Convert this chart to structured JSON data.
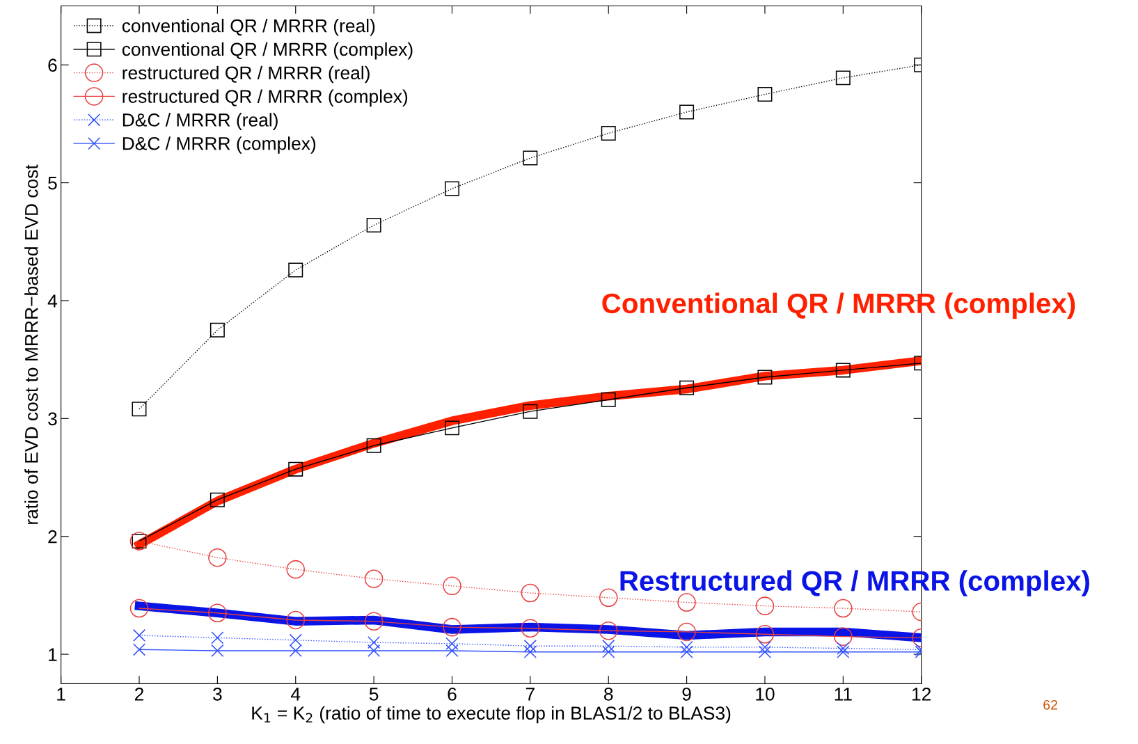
{
  "chart_data": {
    "type": "line",
    "xlabel": "K$_{1}$ = K$_{2}$ (ratio of time to execute flop in BLAS1/2 to BLAS3)",
    "ylabel": "ratio of EVD cost to MRRR−based EVD cost",
    "x": [
      2,
      3,
      4,
      5,
      6,
      7,
      8,
      9,
      10,
      11,
      12
    ],
    "xlim": [
      1,
      12
    ],
    "xticks": [
      1,
      2,
      3,
      4,
      5,
      6,
      7,
      8,
      9,
      10,
      11,
      12
    ],
    "ylim": [
      0.75,
      6.5
    ],
    "yticks": [
      1,
      2,
      3,
      4,
      5,
      6
    ],
    "grid": false,
    "legend": "top left",
    "series": [
      {
        "name": "conventional QR / MRRR (real)",
        "color": "#000000",
        "marker": "square",
        "line_style": "dotted",
        "values": [
          3.08,
          3.75,
          4.26,
          4.64,
          4.95,
          5.21,
          5.42,
          5.6,
          5.75,
          5.89,
          6.0
        ]
      },
      {
        "name": "conventional QR / MRRR (complex)",
        "color": "#000000",
        "marker": "square",
        "line_style": "solid",
        "values": [
          1.96,
          2.31,
          2.57,
          2.77,
          2.92,
          3.06,
          3.16,
          3.26,
          3.35,
          3.41,
          3.47
        ]
      },
      {
        "name": "restructured QR / MRRR (real)",
        "color": "#e84040",
        "marker": "circle",
        "line_style": "dotted",
        "values": [
          1.96,
          1.82,
          1.72,
          1.64,
          1.58,
          1.52,
          1.48,
          1.44,
          1.41,
          1.39,
          1.36
        ]
      },
      {
        "name": "restructured QR / MRRR (complex)",
        "color": "#e84040",
        "marker": "circle",
        "line_style": "solid",
        "values": [
          1.39,
          1.35,
          1.29,
          1.28,
          1.23,
          1.22,
          1.2,
          1.19,
          1.17,
          1.15,
          1.14
        ]
      },
      {
        "name": "D&C / MRRR (real)",
        "color": "#3050ff",
        "marker": "cross",
        "line_style": "dotted",
        "values": [
          1.16,
          1.14,
          1.12,
          1.1,
          1.09,
          1.07,
          1.07,
          1.06,
          1.06,
          1.05,
          1.04
        ]
      },
      {
        "name": "D&C / MRRR (complex)",
        "color": "#3050ff",
        "marker": "cross",
        "line_style": "solid",
        "values": [
          1.04,
          1.03,
          1.03,
          1.03,
          1.03,
          1.02,
          1.02,
          1.02,
          1.02,
          1.02,
          1.02
        ]
      },
      {
        "color": "#ff2000",
        "line_style": "solid",
        "values": [
          1.93,
          2.3,
          2.57,
          2.79,
          2.98,
          3.11,
          3.19,
          3.25,
          3.36,
          3.41,
          3.49
        ]
      },
      {
        "color": "#0a14e6",
        "line_style": "solid",
        "values": [
          1.41,
          1.35,
          1.28,
          1.29,
          1.21,
          1.23,
          1.21,
          1.16,
          1.19,
          1.19,
          1.14
        ]
      }
    ],
    "annotations": [
      "Conventional QR / MRRR (complex)",
      "Restructured QR / MRRR (complex)",
      "62"
    ]
  }
}
